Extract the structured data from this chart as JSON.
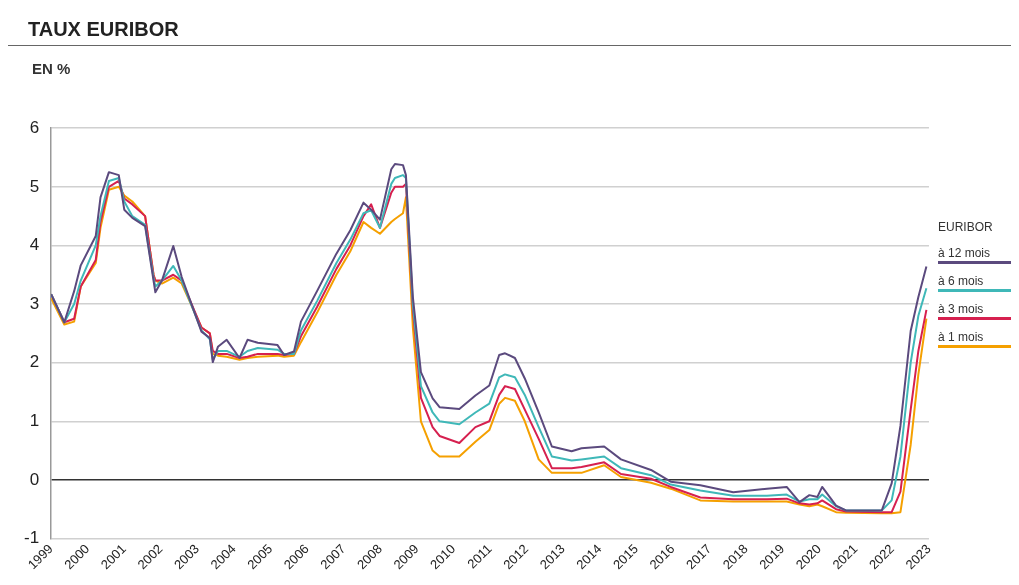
{
  "chart_data": {
    "type": "line",
    "title": "TAUX EURIBOR",
    "subtitle": "EN %",
    "legend_title": "EURIBOR",
    "legend": "right",
    "grid": "y",
    "marker": "none",
    "line_style": "solid",
    "x": [
      1999.0,
      1999.36,
      1999.63,
      1999.81,
      2000.22,
      2000.35,
      2000.58,
      2000.85,
      2001.0,
      2001.22,
      2001.57,
      2001.8,
      2001.85,
      2002.03,
      2002.34,
      2002.57,
      2003.11,
      2003.34,
      2003.42,
      2003.56,
      2003.8,
      2004.15,
      2004.37,
      2004.65,
      2005.19,
      2005.37,
      2005.64,
      2005.83,
      2006.27,
      2006.8,
      2007.18,
      2007.54,
      2007.75,
      2007.99,
      2008.3,
      2008.4,
      2008.62,
      2008.7,
      2008.89,
      2009.11,
      2009.43,
      2009.62,
      2010.16,
      2010.6,
      2010.98,
      2011.25,
      2011.41,
      2011.68,
      2011.95,
      2012.33,
      2012.69,
      2013.23,
      2013.5,
      2014.12,
      2014.58,
      2015.4,
      2015.94,
      2016.75,
      2017.65,
      2018.57,
      2019.11,
      2019.46,
      2019.73,
      2019.95,
      2020.08,
      2020.46,
      2020.73,
      2021.71,
      2021.98,
      2022.22,
      2022.5,
      2022.71,
      2022.93
    ],
    "xlim": [
      1999,
      2023
    ],
    "xticks": [
      1999,
      2000,
      2001,
      2002,
      2003,
      2004,
      2005,
      2006,
      2007,
      2008,
      2009,
      2010,
      2011,
      2012,
      2013,
      2014,
      2015,
      2016,
      2017,
      2018,
      2019,
      2020,
      2021,
      2022,
      2023
    ],
    "ylim": [
      -1,
      6
    ],
    "yticks": [
      -1,
      0,
      1,
      2,
      3,
      4,
      5,
      6
    ],
    "series": [
      {
        "name": "à 12 mois",
        "color": "#5b4a7e",
        "values": [
          3.17,
          2.69,
          3.22,
          3.66,
          4.16,
          4.82,
          5.25,
          5.2,
          4.61,
          4.47,
          4.33,
          3.4,
          3.2,
          3.4,
          3.99,
          3.46,
          2.53,
          2.42,
          2.01,
          2.27,
          2.39,
          2.08,
          2.39,
          2.34,
          2.3,
          2.13,
          2.19,
          2.7,
          3.22,
          3.86,
          4.26,
          4.73,
          4.61,
          4.44,
          5.3,
          5.39,
          5.37,
          5.2,
          3.12,
          1.84,
          1.39,
          1.24,
          1.21,
          1.44,
          1.61,
          2.13,
          2.16,
          2.08,
          1.73,
          1.15,
          0.57,
          0.49,
          0.54,
          0.57,
          0.35,
          0.17,
          -0.03,
          -0.09,
          -0.21,
          -0.15,
          -0.12,
          -0.38,
          -0.26,
          -0.29,
          -0.12,
          -0.44,
          -0.52,
          -0.52,
          -0.06,
          0.92,
          2.54,
          3.12,
          3.64
        ]
      },
      {
        "name": "à 6 mois",
        "color": "#3fb8b8",
        "values": [
          3.17,
          2.69,
          3.0,
          3.4,
          4.0,
          4.5,
          5.1,
          5.15,
          4.75,
          4.5,
          4.35,
          3.45,
          3.3,
          3.4,
          3.65,
          3.4,
          2.55,
          2.4,
          2.05,
          2.2,
          2.2,
          2.1,
          2.2,
          2.25,
          2.22,
          2.15,
          2.15,
          2.55,
          3.05,
          3.7,
          4.1,
          4.55,
          4.6,
          4.3,
          5.05,
          5.15,
          5.2,
          5.15,
          3.0,
          1.6,
          1.15,
          1.0,
          0.95,
          1.15,
          1.3,
          1.75,
          1.8,
          1.75,
          1.45,
          0.9,
          0.4,
          0.33,
          0.35,
          0.4,
          0.2,
          0.08,
          -0.08,
          -0.18,
          -0.27,
          -0.27,
          -0.25,
          -0.37,
          -0.33,
          -0.33,
          -0.25,
          -0.45,
          -0.52,
          -0.52,
          -0.35,
          0.4,
          2.0,
          2.8,
          3.27
        ]
      },
      {
        "name": "à 3 mois",
        "color": "#d6204f",
        "values": [
          3.17,
          2.69,
          2.75,
          3.3,
          3.75,
          4.4,
          5.0,
          5.1,
          4.8,
          4.7,
          4.5,
          3.5,
          3.4,
          3.4,
          3.5,
          3.4,
          2.6,
          2.5,
          2.2,
          2.15,
          2.15,
          2.08,
          2.1,
          2.15,
          2.15,
          2.13,
          2.15,
          2.45,
          2.95,
          3.6,
          4.0,
          4.5,
          4.7,
          4.3,
          4.9,
          5.0,
          5.0,
          5.05,
          2.9,
          1.4,
          0.9,
          0.75,
          0.63,
          0.9,
          1.0,
          1.45,
          1.6,
          1.55,
          1.2,
          0.7,
          0.2,
          0.2,
          0.22,
          0.3,
          0.1,
          0.02,
          -0.12,
          -0.3,
          -0.33,
          -0.33,
          -0.32,
          -0.4,
          -0.42,
          -0.4,
          -0.35,
          -0.5,
          -0.54,
          -0.55,
          -0.55,
          -0.2,
          1.2,
          2.2,
          2.9
        ]
      },
      {
        "name": "à 1 mois",
        "color": "#f5a000",
        "values": [
          3.1,
          2.65,
          2.7,
          3.3,
          3.7,
          4.3,
          4.95,
          5.0,
          4.85,
          4.75,
          4.5,
          3.5,
          3.4,
          3.35,
          3.45,
          3.35,
          2.6,
          2.5,
          2.15,
          2.12,
          2.1,
          2.05,
          2.08,
          2.1,
          2.12,
          2.1,
          2.12,
          2.35,
          2.85,
          3.5,
          3.9,
          4.4,
          4.3,
          4.2,
          4.4,
          4.45,
          4.55,
          4.82,
          2.6,
          1.0,
          0.5,
          0.4,
          0.4,
          0.65,
          0.85,
          1.3,
          1.4,
          1.35,
          1.0,
          0.35,
          0.12,
          0.12,
          0.12,
          0.25,
          0.05,
          -0.05,
          -0.15,
          -0.35,
          -0.37,
          -0.37,
          -0.37,
          -0.42,
          -0.45,
          -0.42,
          -0.45,
          -0.55,
          -0.56,
          -0.57,
          -0.57,
          -0.55,
          0.6,
          1.8,
          2.75
        ]
      }
    ]
  }
}
